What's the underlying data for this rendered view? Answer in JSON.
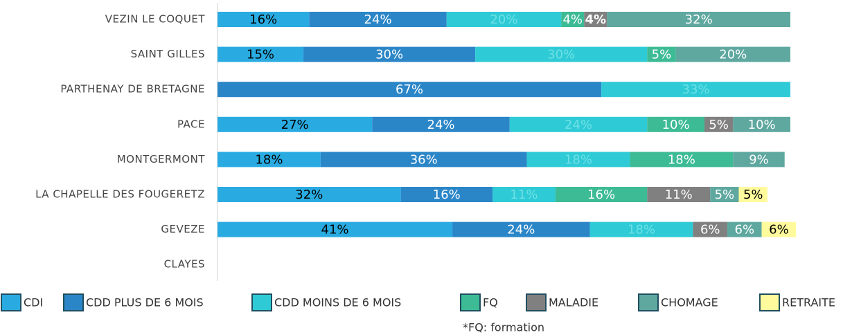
{
  "chart_data": {
    "type": "stacked_bar_horizontal",
    "categories": [
      "VEZIN LE COQUET",
      "SAINT GILLES",
      "PARTHENAY DE BRETAGNE",
      "PACE",
      "MONTGERMONT",
      "LA CHAPELLE DES FOUGERETZ",
      "GEVEZE",
      "CLAYES"
    ],
    "xlim": [
      0,
      100
    ],
    "series": [
      {
        "name": "CDI",
        "color": "#29abe2",
        "label_color": "#000000",
        "values": [
          16,
          15,
          null,
          27,
          18,
          32,
          41,
          null
        ],
        "value_labels": [
          "16%",
          "15%",
          null,
          "27%",
          "18%",
          "32%",
          "41%",
          null
        ]
      },
      {
        "name": "CDD PLUS DE 6 MOIS",
        "color": "#2b86c8",
        "label_color": "#ffffff",
        "values": [
          24,
          30,
          67,
          24,
          36,
          16,
          24,
          null
        ],
        "value_labels": [
          "24%",
          "30%",
          "67%",
          "24%",
          "36%",
          "16%",
          "24%",
          null
        ]
      },
      {
        "name": "CDD MOINS DE 6 MOIS",
        "color": "#2ecbd6",
        "label_color": "#6fe0e6",
        "values": [
          20,
          30,
          33,
          24,
          18,
          11,
          18,
          null
        ],
        "value_labels": [
          "20%",
          "30%",
          "33%",
          "24%",
          "18%",
          "11%",
          "18%",
          null
        ]
      },
      {
        "name": "FQ",
        "color": "#3dbb94",
        "label_color": "#ffffff",
        "values": [
          4,
          5,
          null,
          10,
          18,
          16,
          null,
          null
        ],
        "value_labels": [
          "4%",
          "5%",
          null,
          "10%",
          "18%",
          "16%",
          null,
          null
        ]
      },
      {
        "name": "MALADIE",
        "color": "#808080",
        "label_color": "#ffffff",
        "values": [
          4,
          null,
          null,
          5,
          null,
          11,
          6,
          null
        ],
        "value_labels": [
          "4%",
          null,
          null,
          "5%",
          null,
          "11%",
          "6%",
          null
        ]
      },
      {
        "name": "CHOMAGE",
        "color": "#5fa8a0",
        "label_color": "#ffffff",
        "values": [
          32,
          20,
          null,
          10,
          9,
          5,
          6,
          null
        ],
        "value_labels": [
          "32%",
          "20%",
          null,
          "10%",
          "9%",
          "5%",
          "6%",
          null
        ]
      },
      {
        "name": "RETRAITE",
        "color": "#fffa9c",
        "label_color": "#000000",
        "values": [
          null,
          null,
          null,
          null,
          null,
          5,
          6,
          null
        ],
        "value_labels": [
          null,
          null,
          null,
          null,
          null,
          "5%",
          "6%",
          null
        ]
      }
    ],
    "footnote": "*FQ: formation"
  }
}
